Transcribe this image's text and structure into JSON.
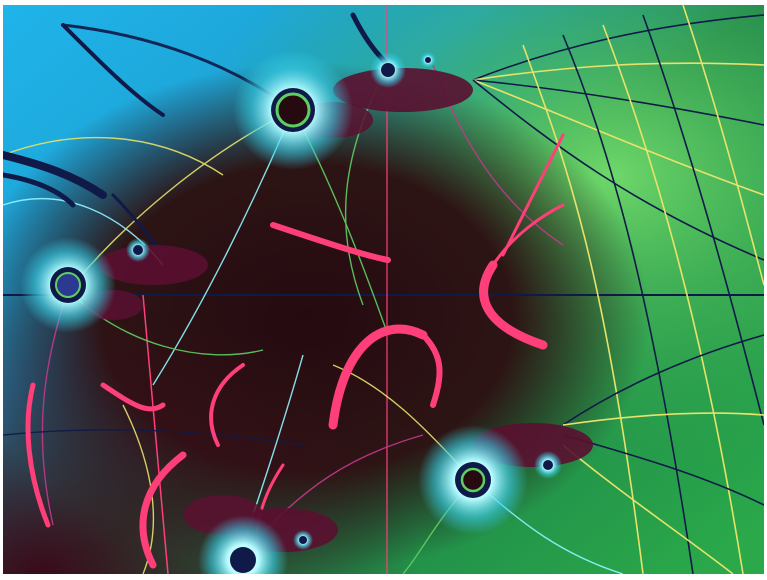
{
  "image": {
    "kind": "fractal artwork",
    "palette": {
      "sky": "#1fb4ea",
      "sky_light": "#7fd8f5",
      "green": "#2aa84a",
      "green_light": "#5fcf62",
      "dark": "#250a10",
      "maroon": "#5a1030",
      "pink": "#ff3f7a",
      "yellow": "#e8e26a",
      "navy": "#101a48",
      "cyan": "#8ff5ff",
      "magenta": "#c03a8a"
    },
    "visible_text": []
  }
}
